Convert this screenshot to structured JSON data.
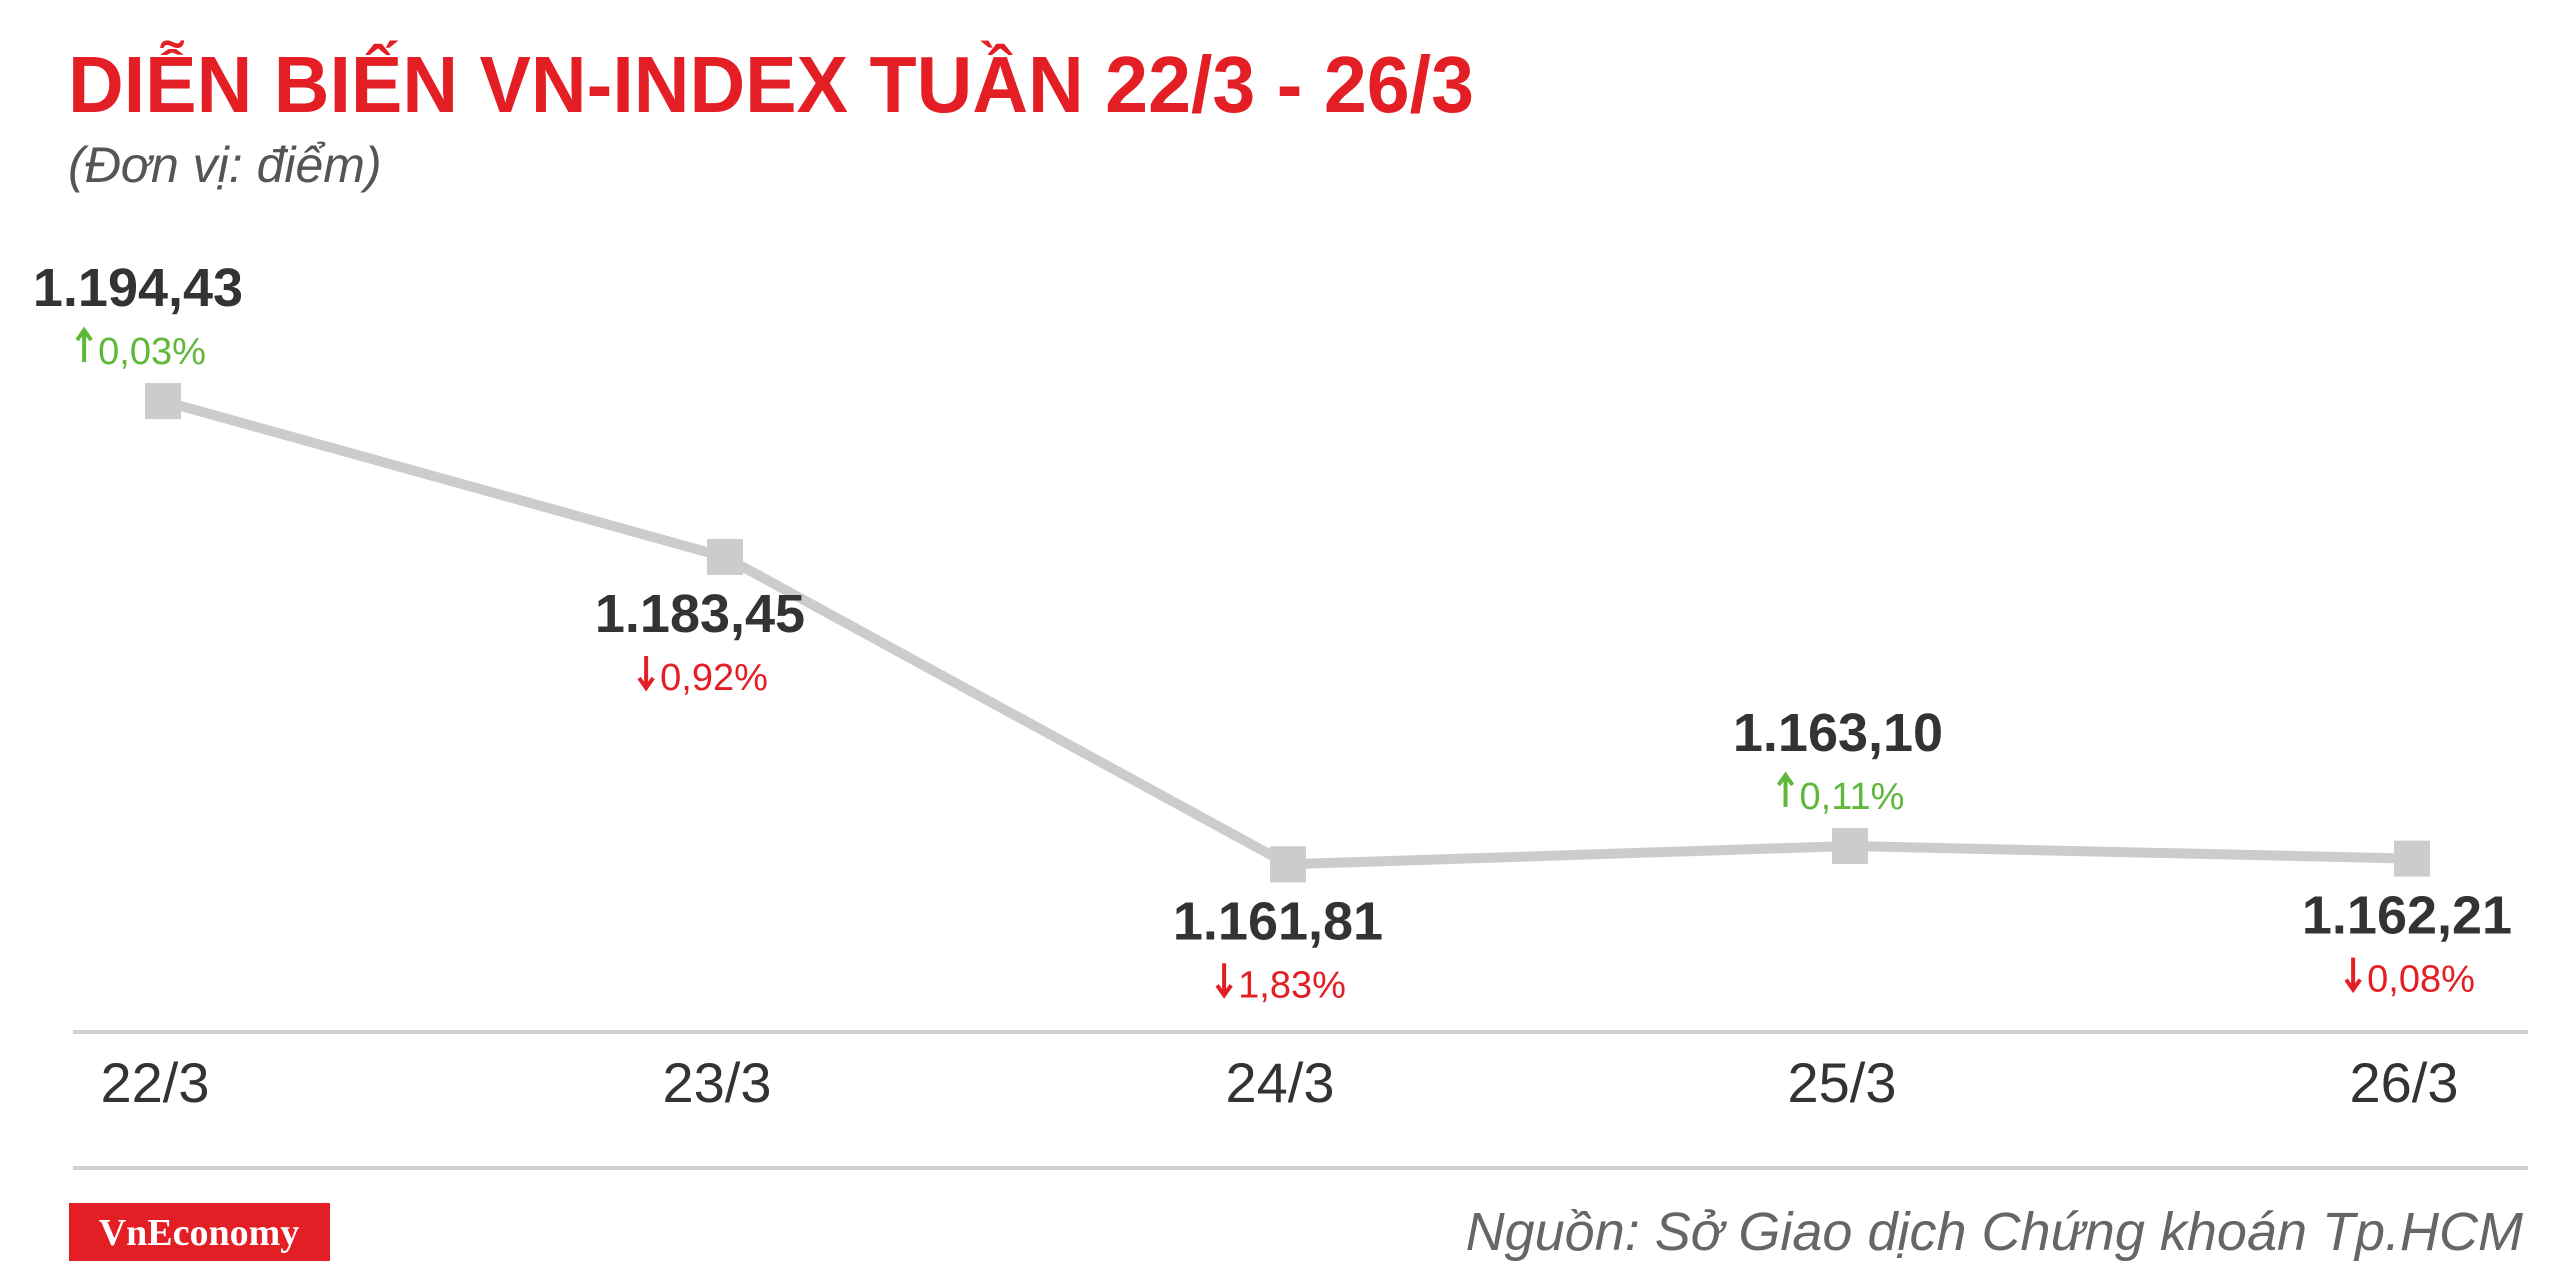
{
  "chart_data": {
    "type": "line",
    "title": "DIỄN BIẾN VN-INDEX TUẦN 22/3 - 26/3",
    "subtitle": "(Đơn vị: điểm)",
    "categories": [
      "22/3",
      "23/3",
      "24/3",
      "25/3",
      "26/3"
    ],
    "series": [
      {
        "name": "VN-Index",
        "color": "#cccccc",
        "values": [
          1194.43,
          1183.45,
          1161.81,
          1163.1,
          1162.21
        ],
        "value_labels": [
          "1.194,43",
          "1.183,45",
          "1.161,81",
          "1.163,10",
          "1.162,21"
        ]
      }
    ],
    "changes": {
      "values": [
        0.03,
        -0.92,
        -1.83,
        0.11,
        -0.08
      ],
      "value_labels": [
        "0,03%",
        "0,92%",
        "1,83%",
        "0,11%",
        "0,08%"
      ],
      "colors": {
        "up": "#5fb83a",
        "down": "#e31e24"
      }
    },
    "ylim": [
      1150,
      1200
    ],
    "brand": "VnEconomy",
    "source": "Nguồn: Sở Giao dịch Chứng khoán Tp.HCM"
  }
}
